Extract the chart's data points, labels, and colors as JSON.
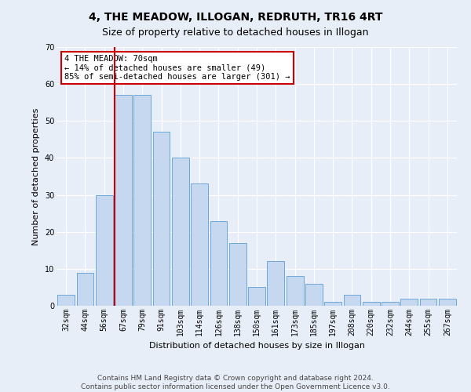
{
  "title": "4, THE MEADOW, ILLOGAN, REDRUTH, TR16 4RT",
  "subtitle": "Size of property relative to detached houses in Illogan",
  "xlabel": "Distribution of detached houses by size in Illogan",
  "ylabel": "Number of detached properties",
  "categories": [
    "32sqm",
    "44sqm",
    "56sqm",
    "67sqm",
    "79sqm",
    "91sqm",
    "103sqm",
    "114sqm",
    "126sqm",
    "138sqm",
    "150sqm",
    "161sqm",
    "173sqm",
    "185sqm",
    "197sqm",
    "208sqm",
    "220sqm",
    "232sqm",
    "244sqm",
    "255sqm",
    "267sqm"
  ],
  "values": [
    3,
    9,
    30,
    57,
    57,
    47,
    40,
    33,
    23,
    17,
    5,
    12,
    8,
    6,
    1,
    3,
    1,
    1,
    2,
    2,
    2
  ],
  "bar_color": "#c5d8f0",
  "bar_edge_color": "#5a9fd4",
  "vline_index": 3,
  "vline_color": "#cc0000",
  "ylim": [
    0,
    70
  ],
  "yticks": [
    0,
    10,
    20,
    30,
    40,
    50,
    60,
    70
  ],
  "annotation_title": "4 THE MEADOW: 70sqm",
  "annotation_line1": "← 14% of detached houses are smaller (49)",
  "annotation_line2": "85% of semi-detached houses are larger (301) →",
  "annotation_box_color": "#ffffff",
  "annotation_box_edge": "#cc0000",
  "footer1": "Contains HM Land Registry data © Crown copyright and database right 2024.",
  "footer2": "Contains public sector information licensed under the Open Government Licence v3.0.",
  "background_color": "#e8eef8",
  "grid_color": "#ffffff",
  "title_fontsize": 10,
  "subtitle_fontsize": 9,
  "axis_label_fontsize": 8,
  "tick_fontsize": 7,
  "footer_fontsize": 6.5,
  "annotation_fontsize": 7.5
}
